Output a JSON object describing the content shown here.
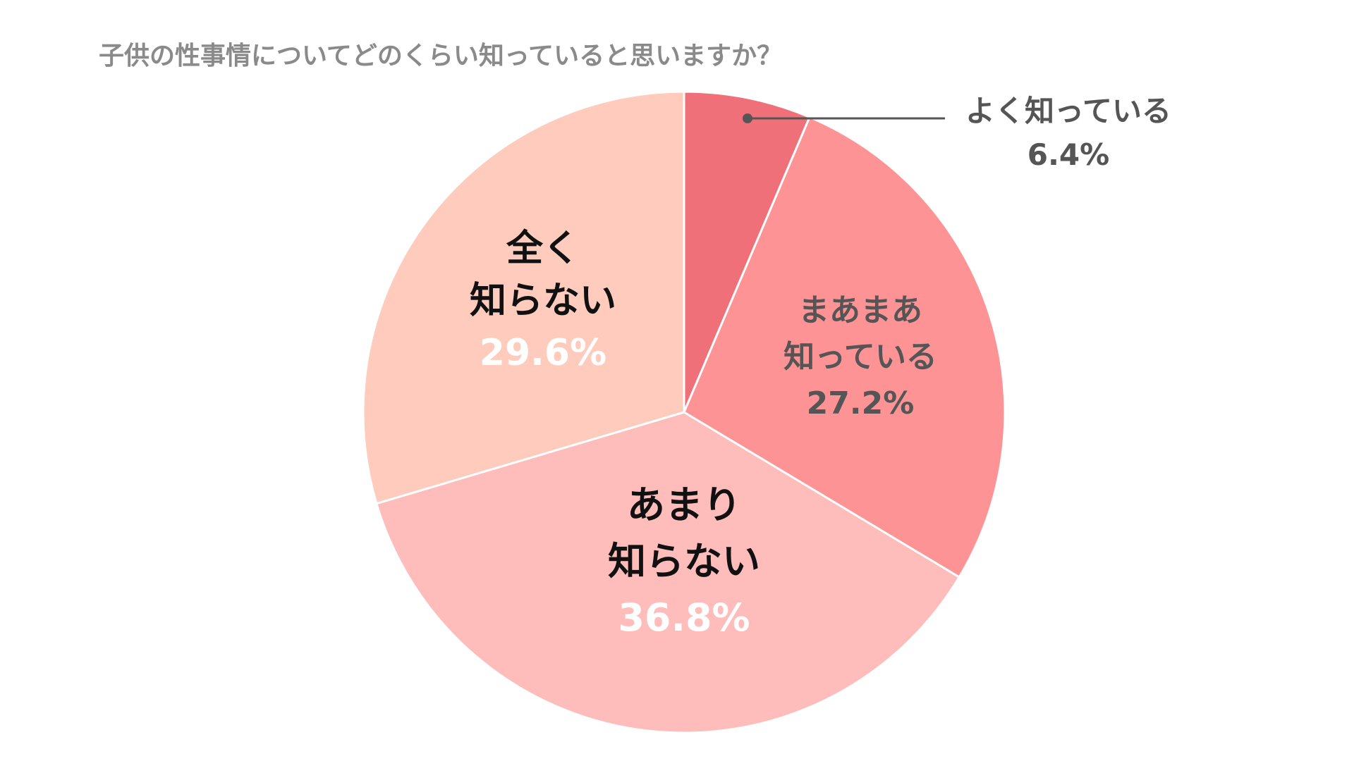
{
  "chart_data": {
    "type": "pie",
    "title": "子供の性事情についてどのくらい知っていると思いますか？",
    "slices": [
      {
        "label_lines": [
          "よく知っている"
        ],
        "value": 6.4,
        "value_label": "6.4%",
        "color": "#f0707a"
      },
      {
        "label_lines": [
          "まあまあ",
          "知っている"
        ],
        "value": 27.2,
        "value_label": "27.2%",
        "color": "#fe9395"
      },
      {
        "label_lines": [
          "あまり",
          "知らない"
        ],
        "value": 36.8,
        "value_label": "36.8%",
        "color": "#febcba"
      },
      {
        "label_lines": [
          "全く",
          "知らない"
        ],
        "value": 29.6,
        "value_label": "29.6%",
        "color": "#fecbbd"
      }
    ]
  }
}
